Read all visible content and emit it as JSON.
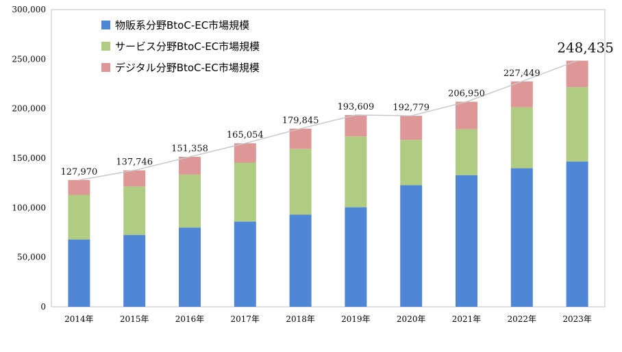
{
  "chart_data": {
    "type": "bar",
    "stacked": true,
    "categories": [
      "2014年",
      "2015年",
      "2016年",
      "2017年",
      "2018年",
      "2019年",
      "2020年",
      "2021年",
      "2022年",
      "2023年"
    ],
    "series": [
      {
        "name": "物販系分野BtoC-EC市場規模",
        "color": "#4F86D6",
        "values": [
          68000,
          72500,
          80000,
          86000,
          93000,
          100500,
          122700,
          132900,
          139900,
          146700
        ]
      },
      {
        "name": "サービス分野BtoC-EC市場規模",
        "color": "#B0CC82",
        "values": [
          45000,
          49000,
          53500,
          59500,
          66500,
          71500,
          45800,
          46400,
          61500,
          75000
        ]
      },
      {
        "name": "デジタル分野BtoC-EC市場規模",
        "color": "#DC9796",
        "values": [
          14970,
          16246,
          17858,
          19554,
          20345,
          21609,
          24279,
          27650,
          26049,
          26735
        ]
      }
    ],
    "totals": [
      127970,
      137746,
      151358,
      165054,
      179845,
      193609,
      192779,
      206950,
      227449,
      248435
    ],
    "total_labels": [
      "127,970",
      "137,746",
      "151,358",
      "165,054",
      "179,845",
      "193,609",
      "192,779",
      "206,950",
      "227,449",
      "248,435"
    ],
    "y_ticks": [
      "0",
      "50,000",
      "100,000",
      "150,000",
      "200,000",
      "250,000",
      "300,000"
    ],
    "y_tick_values": [
      0,
      50000,
      100000,
      150000,
      200000,
      250000,
      300000
    ],
    "ylim": [
      0,
      300000
    ],
    "legend_position": "top-left",
    "grid": false,
    "total_line": true,
    "title": "",
    "xlabel": "",
    "ylabel": ""
  }
}
